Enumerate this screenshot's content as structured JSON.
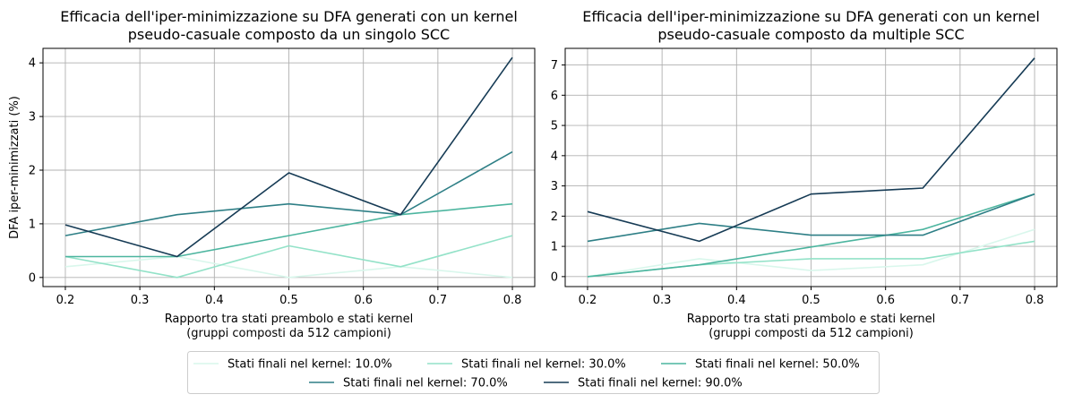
{
  "chart_data": [
    {
      "type": "line",
      "title": "Efficacia dell'iper-minimizzazione su DFA generati con un kernel\npseudo-casuale composto da un singolo SCC",
      "xlabel": "Rapporto tra stati preambolo e stati kernel\n(gruppi composti da 512 campioni)",
      "ylabel": "DFA iper-minimizzati (%)",
      "x": [
        0.2,
        0.35,
        0.5,
        0.65,
        0.8
      ],
      "xlim": [
        0.17,
        0.83
      ],
      "ylim": [
        -0.17,
        4.27
      ],
      "xticks": [
        0.2,
        0.3,
        0.4,
        0.5,
        0.6,
        0.7,
        0.8
      ],
      "yticks": [
        0,
        1,
        2,
        3,
        4
      ],
      "grid": true,
      "series": [
        {
          "name": "Stati finali nel kernel: 10.0%",
          "color": "#d9f7ec",
          "values": [
            0.2,
            0.39,
            0.0,
            0.2,
            0.0
          ]
        },
        {
          "name": "Stati finali nel kernel: 30.0%",
          "color": "#93e2c8",
          "values": [
            0.39,
            0.0,
            0.59,
            0.2,
            0.78
          ]
        },
        {
          "name": "Stati finali nel kernel: 50.0%",
          "color": "#4cb59f",
          "values": [
            0.39,
            0.39,
            0.78,
            1.17,
            1.37
          ]
        },
        {
          "name": "Stati finali nel kernel: 70.0%",
          "color": "#2e7f86",
          "values": [
            0.78,
            1.17,
            1.37,
            1.17,
            2.34
          ]
        },
        {
          "name": "Stati finali nel kernel: 90.0%",
          "color": "#163b55",
          "values": [
            0.98,
            0.39,
            1.95,
            1.17,
            4.1
          ]
        }
      ]
    },
    {
      "type": "line",
      "title": "Efficacia dell'iper-minimizzazione su DFA generati con un kernel\npseudo-casuale composto da multiple SCC",
      "xlabel": "Rapporto tra stati preambolo e stati kernel\n(gruppi composti da 512 campioni)",
      "ylabel": "",
      "x": [
        0.2,
        0.35,
        0.5,
        0.65,
        0.8
      ],
      "xlim": [
        0.17,
        0.83
      ],
      "ylim": [
        -0.33,
        7.55
      ],
      "xticks": [
        0.2,
        0.3,
        0.4,
        0.5,
        0.6,
        0.7,
        0.8
      ],
      "yticks": [
        0,
        1,
        2,
        3,
        4,
        5,
        6,
        7
      ],
      "grid": true,
      "series": [
        {
          "name": "Stati finali nel kernel: 10.0%",
          "color": "#d9f7ec",
          "values": [
            0.0,
            0.59,
            0.2,
            0.39,
            1.56
          ]
        },
        {
          "name": "Stati finali nel kernel: 30.0%",
          "color": "#93e2c8",
          "values": [
            0.0,
            0.39,
            0.59,
            0.59,
            1.17
          ]
        },
        {
          "name": "Stati finali nel kernel: 50.0%",
          "color": "#4cb59f",
          "values": [
            0.0,
            0.39,
            0.98,
            1.56,
            2.73
          ]
        },
        {
          "name": "Stati finali nel kernel: 70.0%",
          "color": "#2e7f86",
          "values": [
            1.17,
            1.76,
            1.37,
            1.37,
            2.73
          ]
        },
        {
          "name": "Stati finali nel kernel: 90.0%",
          "color": "#163b55",
          "values": [
            2.15,
            1.17,
            2.73,
            2.93,
            7.23
          ]
        }
      ]
    }
  ],
  "legend": {
    "placement": "bottom-center",
    "items": [
      {
        "label": "Stati finali nel kernel: 10.0%",
        "color": "#d9f7ec"
      },
      {
        "label": "Stati finali nel kernel: 30.0%",
        "color": "#93e2c8"
      },
      {
        "label": "Stati finali nel kernel: 50.0%",
        "color": "#4cb59f"
      },
      {
        "label": "Stati finali nel kernel: 70.0%",
        "color": "#2e7f86"
      },
      {
        "label": "Stati finali nel kernel: 90.0%",
        "color": "#163b55"
      }
    ]
  }
}
